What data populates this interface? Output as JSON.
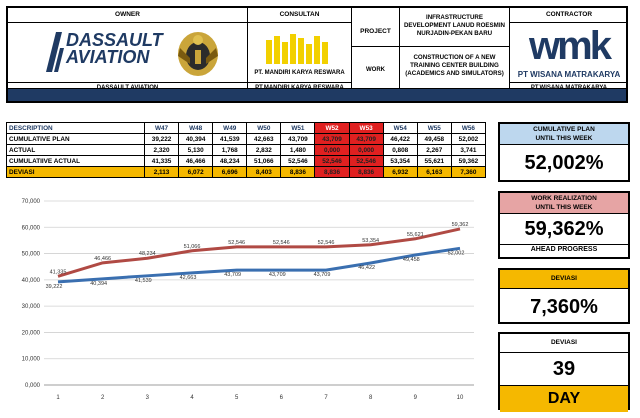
{
  "header": {
    "owner_label": "OWNER",
    "owner_logo_line1": "DASSAULT",
    "owner_logo_line2": "AVIATION",
    "owner_name": "DASSAULT AVIATION",
    "consultant_label": "CONSULTAN",
    "consultant_name_top": "PT. MANDIRI KARYA RESWARA",
    "consultant_name_bottom": "PT.MANDIRI KARYA RESWARA",
    "project_label": "PROJECT",
    "project_desc": "INFRASTRUCTURE DEVELOPMENT LANUD ROESMIN NURJADIN-PEKAN BARU",
    "work_label": "WORK",
    "work_desc": "CONSTRUCTION OF A NEW TRAINING CENTER BUILDING (ACADEMICS AND SIMULATORS)",
    "contractor_label": "CONTRACTOR",
    "contractor_logo": "wmk",
    "contractor_name_top": "PT WISANA MATRAKARYA",
    "contractor_name_bottom": "PT.WISANA MATRAKARYA"
  },
  "table": {
    "columns": [
      "DESCRIPTION",
      "W47",
      "W48",
      "W49",
      "W50",
      "W51",
      "W52",
      "W53",
      "W54",
      "W55",
      "W56"
    ],
    "rows": [
      {
        "label": "CUMULATIVE PLAN",
        "values": [
          "39,222",
          "40,394",
          "41,539",
          "42,663",
          "43,709",
          "43,709",
          "43,709",
          "46,422",
          "49,458",
          "52,002"
        ]
      },
      {
        "label": "ACTUAL",
        "values": [
          "2,320",
          "5,130",
          "1,768",
          "2,832",
          "1,480",
          "0,000",
          "0,000",
          "0,808",
          "2,267",
          "3,741"
        ]
      },
      {
        "label": "CUMULATIIVE ACTUAL",
        "values": [
          "41,335",
          "46,466",
          "48,234",
          "51,066",
          "52,546",
          "52,546",
          "52,546",
          "53,354",
          "55,621",
          "59,362"
        ]
      },
      {
        "label": "DEVIASI",
        "values": [
          "2,113",
          "6,072",
          "6,696",
          "8,403",
          "8,836",
          "8,836",
          "8,836",
          "6,932",
          "6,163",
          "7,360"
        ]
      }
    ]
  },
  "panels": {
    "cumulative_plan_title_1": "CUMULATIVE PLAN",
    "cumulative_plan_title_2": "UNTIL THIS WEEK",
    "cumulative_plan_value": "52,002%",
    "work_real_title_1": "WORK REALIZATION",
    "work_real_title_2": "UNTIL THIS WEEK",
    "work_real_value": "59,362%",
    "work_real_note": "AHEAD PROGRESS",
    "deviasi_title": "DEVIASI",
    "deviasi_value": "7,360%",
    "days_title": "DEVIASI",
    "days_value": "39",
    "days_unit": "DAY"
  },
  "colors": {
    "navy": "#1f3a63",
    "plan_panel": "#bdd7ee",
    "actual_panel": "#e6a4a4",
    "highlight_red": "#e02020",
    "amber": "#f5b800",
    "plan_line": "#3a6fb0",
    "actual_line": "#b04a44"
  },
  "chart_data": {
    "type": "line",
    "x": [
      1,
      2,
      3,
      4,
      5,
      6,
      7,
      8,
      9,
      10
    ],
    "ylim": [
      0,
      70000
    ],
    "yticks": [
      "0,000",
      "10,000",
      "20,000",
      "30,000",
      "40,000",
      "50,000",
      "60,000",
      "70,000"
    ],
    "grid": true,
    "series": [
      {
        "values": [
          39.222,
          40.394,
          41.539,
          42.663,
          43.709,
          43.709,
          43.709,
          46.422,
          49.458,
          52.002
        ],
        "labels": [
          "39,222",
          "40,394",
          "41,539",
          "42,663",
          "43,709",
          "43,709",
          "43,709",
          "46,422",
          "49,458",
          "52,002"
        ],
        "color": "#3a6fb0"
      },
      {
        "values": [
          41.335,
          46.466,
          48.234,
          51.066,
          52.546,
          52.546,
          52.546,
          53.354,
          55.621,
          59.362
        ],
        "labels": [
          "41,335",
          "46,466",
          "48,234",
          "51,066",
          "52,546",
          "52,546",
          "52,546",
          "53,354",
          "55,621",
          "59,362"
        ],
        "color": "#b04a44"
      }
    ]
  }
}
